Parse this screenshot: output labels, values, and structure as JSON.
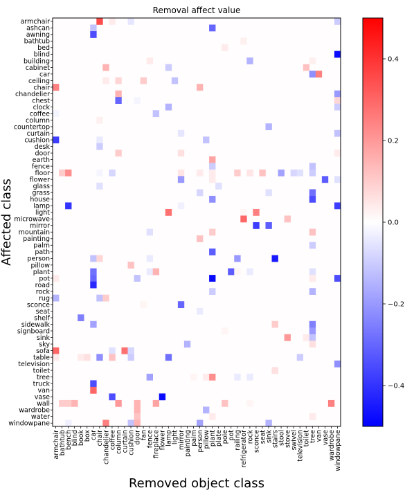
{
  "chart_data": {
    "type": "heatmap",
    "title": "Removal affect value",
    "xlabel": "Removed object class",
    "ylabel": "Affected class",
    "x_categories": [
      "armchair",
      "bathtub",
      "bench",
      "blind",
      "book",
      "box",
      "car",
      "chair",
      "chandelier",
      "coffee",
      "column",
      "curtain",
      "cushion",
      "door",
      "fan",
      "fence",
      "fireplace",
      "flower",
      "lamp",
      "light",
      "mirror",
      "painting",
      "palm",
      "person",
      "pillow",
      "plant",
      "plate",
      "pole",
      "pot",
      "railing",
      "refrigerator",
      "rock",
      "sconce",
      "seat",
      "sink",
      "stairs",
      "stool",
      "stove",
      "swivel",
      "television",
      "toilet",
      "tree",
      "van",
      "vase",
      "wardrobe",
      "windowpane"
    ],
    "y_categories": [
      "armchair",
      "ashcan",
      "awning",
      "bathtub",
      "bed",
      "blind",
      "building",
      "cabinet",
      "car",
      "ceiling",
      "chair",
      "chandelier",
      "chest",
      "clock",
      "coffee",
      "column",
      "countertop",
      "curtain",
      "cushion",
      "desk",
      "door",
      "earth",
      "fence",
      "floor",
      "flower",
      "glass",
      "grass",
      "house",
      "lamp",
      "light",
      "microwave",
      "mirror",
      "mountain",
      "painting",
      "palm",
      "path",
      "person",
      "pillow",
      "plant",
      "pot",
      "road",
      "rock",
      "rug",
      "sconce",
      "seat",
      "shelf",
      "sidewalk",
      "signboard",
      "sink",
      "sky",
      "sofa",
      "table",
      "television",
      "toilet",
      "tree",
      "truck",
      "van",
      "vase",
      "wall",
      "wardrobe",
      "water",
      "windowpane"
    ],
    "cells": [
      {
        "y": "armchair",
        "x": "chair",
        "v": 0.35
      },
      {
        "y": "armchair",
        "x": "coffee",
        "v": 0.04
      },
      {
        "y": "armchair",
        "x": "cushion",
        "v": -0.05
      },
      {
        "y": "armchair",
        "x": "windowpane",
        "v": -0.1
      },
      {
        "y": "ashcan",
        "x": "car",
        "v": -0.12
      },
      {
        "y": "ashcan",
        "x": "plant",
        "v": -0.3
      },
      {
        "y": "awning",
        "x": "car",
        "v": -0.35
      },
      {
        "y": "bed",
        "x": "pole",
        "v": 0.04
      },
      {
        "y": "bathtub",
        "x": "refrigerator",
        "v": 0.03
      },
      {
        "y": "blind",
        "x": "windowpane",
        "v": -0.48
      },
      {
        "y": "building",
        "x": "fence",
        "v": 0.04
      },
      {
        "y": "building",
        "x": "rock",
        "v": -0.15
      },
      {
        "y": "building",
        "x": "tree",
        "v": 0.03
      },
      {
        "y": "cabinet",
        "x": "chandelier",
        "v": 0.15
      },
      {
        "y": "cabinet",
        "x": "lamp",
        "v": -0.1
      },
      {
        "y": "cabinet",
        "x": "toilet",
        "v": 0.12
      },
      {
        "y": "car",
        "x": "tree",
        "v": -0.22
      },
      {
        "y": "car",
        "x": "van",
        "v": 0.25
      },
      {
        "y": "ceiling",
        "x": "chandelier",
        "v": 0.04
      },
      {
        "y": "ceiling",
        "x": "column",
        "v": 0.08
      },
      {
        "y": "ceiling",
        "x": "fan",
        "v": 0.1
      },
      {
        "y": "ceiling",
        "x": "light",
        "v": -0.12
      },
      {
        "y": "chair",
        "x": "armchair",
        "v": 0.25
      },
      {
        "y": "chair",
        "x": "person",
        "v": 0.15
      },
      {
        "y": "chandelier",
        "x": "column",
        "v": 0.15
      },
      {
        "y": "chandelier",
        "x": "windowpane",
        "v": -0.2
      },
      {
        "y": "chest",
        "x": "column",
        "v": -0.3
      },
      {
        "y": "chest",
        "x": "door",
        "v": -0.02
      },
      {
        "y": "chest",
        "x": "windowpane",
        "v": 0.08
      },
      {
        "y": "clock",
        "x": "lamp",
        "v": -0.15
      },
      {
        "y": "clock",
        "x": "windowpane",
        "v": -0.1
      },
      {
        "y": "coffee",
        "x": "armchair",
        "v": -0.02
      },
      {
        "y": "coffee",
        "x": "fireplace",
        "v": -0.12
      },
      {
        "y": "column",
        "x": "chair",
        "v": 0.03
      },
      {
        "y": "curtain",
        "x": "mirror",
        "v": -0.05
      },
      {
        "y": "curtain",
        "x": "windowpane",
        "v": -0.12
      },
      {
        "y": "countertop",
        "x": "sink",
        "v": -0.15
      },
      {
        "y": "cushion",
        "x": "armchair",
        "v": -0.38
      },
      {
        "y": "cushion",
        "x": "chair",
        "v": -0.04
      },
      {
        "y": "cushion",
        "x": "pillow",
        "v": -0.12
      },
      {
        "y": "desk",
        "x": "chair",
        "v": -0.1
      },
      {
        "y": "door",
        "x": "column",
        "v": 0.1
      },
      {
        "y": "door",
        "x": "mirror",
        "v": 0.06
      },
      {
        "y": "door",
        "x": "windowpane",
        "v": 0.04
      },
      {
        "y": "earth",
        "x": "plant",
        "v": 0.18
      },
      {
        "y": "fence",
        "x": "plant",
        "v": -0.1
      },
      {
        "y": "fence",
        "x": "tree",
        "v": -0.12
      },
      {
        "y": "floor",
        "x": "bathtub",
        "v": 0.1
      },
      {
        "y": "floor",
        "x": "bench",
        "v": 0.22
      },
      {
        "y": "floor",
        "x": "chair",
        "v": -0.02
      },
      {
        "y": "floor",
        "x": "coffee",
        "v": -0.08
      },
      {
        "y": "floor",
        "x": "mirror",
        "v": 0.05
      },
      {
        "y": "floor",
        "x": "plant",
        "v": 0.04
      },
      {
        "y": "floor",
        "x": "person",
        "v": 0.04
      },
      {
        "y": "floor",
        "x": "railing",
        "v": 0.1
      },
      {
        "y": "floor",
        "x": "rock",
        "v": 0.05
      },
      {
        "y": "floor",
        "x": "seat",
        "v": 0.12
      },
      {
        "y": "floor",
        "x": "stool",
        "v": -0.18
      },
      {
        "y": "floor",
        "x": "swivel",
        "v": -0.08
      },
      {
        "y": "floor",
        "x": "television",
        "v": -0.06
      },
      {
        "y": "floor",
        "x": "tree",
        "v": -0.1
      },
      {
        "y": "flower",
        "x": "mirror",
        "v": -0.2
      },
      {
        "y": "flower",
        "x": "plant",
        "v": 0.04
      },
      {
        "y": "flower",
        "x": "vase",
        "v": -0.32
      },
      {
        "y": "flower",
        "x": "windowpane",
        "v": -0.06
      },
      {
        "y": "glass",
        "x": "chair",
        "v": -0.06
      },
      {
        "y": "glass",
        "x": "plate",
        "v": -0.06
      },
      {
        "y": "grass",
        "x": "person",
        "v": -0.08
      },
      {
        "y": "grass",
        "x": "sink",
        "v": -0.06
      },
      {
        "y": "grass",
        "x": "tree",
        "v": -0.28
      },
      {
        "y": "house",
        "x": "plant",
        "v": -0.22
      },
      {
        "y": "house",
        "x": "tree",
        "v": -0.35
      },
      {
        "y": "lamp",
        "x": "bench",
        "v": -0.4
      },
      {
        "y": "lamp",
        "x": "mirror",
        "v": -0.03
      },
      {
        "y": "lamp",
        "x": "windowpane",
        "v": -0.38
      },
      {
        "y": "light",
        "x": "lamp",
        "v": 0.28
      },
      {
        "y": "light",
        "x": "refrigerator",
        "v": 0.02
      },
      {
        "y": "light",
        "x": "sconce",
        "v": 0.25
      },
      {
        "y": "microwave",
        "x": "refrigerator",
        "v": 0.3
      },
      {
        "y": "microwave",
        "x": "stove",
        "v": 0.12
      },
      {
        "y": "mirror",
        "x": "sconce",
        "v": -0.38
      },
      {
        "y": "mirror",
        "x": "sink",
        "v": -0.32
      },
      {
        "y": "mountain",
        "x": "fence",
        "v": -0.06
      },
      {
        "y": "mountain",
        "x": "plant",
        "v": 0.1
      },
      {
        "y": "mountain",
        "x": "tree",
        "v": 0.12
      },
      {
        "y": "painting",
        "x": "person",
        "v": 0.12
      },
      {
        "y": "palm",
        "x": "tree",
        "v": -0.1
      },
      {
        "y": "path",
        "x": "plant",
        "v": -0.32
      },
      {
        "y": "person",
        "x": "car",
        "v": -0.12
      },
      {
        "y": "person",
        "x": "chair",
        "v": 0.08
      },
      {
        "y": "person",
        "x": "fence",
        "v": -0.04
      },
      {
        "y": "person",
        "x": "railing",
        "v": -0.2
      },
      {
        "y": "person",
        "x": "stairs",
        "v": -0.45
      },
      {
        "y": "pillow",
        "x": "cushion",
        "v": 0.12
      },
      {
        "y": "plant",
        "x": "car",
        "v": -0.28
      },
      {
        "y": "plant",
        "x": "fence",
        "v": -0.04
      },
      {
        "y": "plant",
        "x": "fireplace",
        "v": 0.15
      },
      {
        "y": "plant",
        "x": "pot",
        "v": -0.32
      },
      {
        "y": "plant",
        "x": "railing",
        "v": 0.02
      },
      {
        "y": "plant",
        "x": "rock",
        "v": -0.04
      },
      {
        "y": "plant",
        "x": "tree",
        "v": -0.06
      },
      {
        "y": "pot",
        "x": "armchair",
        "v": 0.04
      },
      {
        "y": "pot",
        "x": "car",
        "v": -0.3
      },
      {
        "y": "pot",
        "x": "door",
        "v": -0.12
      },
      {
        "y": "pot",
        "x": "plant",
        "v": -0.48
      },
      {
        "y": "pot",
        "x": "tree",
        "v": 0.04
      },
      {
        "y": "pot",
        "x": "windowpane",
        "v": -0.35
      },
      {
        "y": "road",
        "x": "car",
        "v": -0.42
      },
      {
        "y": "rock",
        "x": "plant",
        "v": -0.1
      },
      {
        "y": "rock",
        "x": "tree",
        "v": -0.15
      },
      {
        "y": "rug",
        "x": "armchair",
        "v": -0.15
      },
      {
        "y": "rug",
        "x": "chair",
        "v": -0.12
      },
      {
        "y": "rug",
        "x": "chandelier",
        "v": 0.1
      },
      {
        "y": "sconce",
        "x": "fan",
        "v": 0.02
      },
      {
        "y": "sconce",
        "x": "mirror",
        "v": -0.3
      },
      {
        "y": "seat",
        "x": "person",
        "v": -0.04
      },
      {
        "y": "shelf",
        "x": "book",
        "v": -0.25
      },
      {
        "y": "sidewalk",
        "x": "car",
        "v": -0.18
      },
      {
        "y": "sidewalk",
        "x": "stairs",
        "v": 0.1
      },
      {
        "y": "sidewalk",
        "x": "tree",
        "v": -0.25
      },
      {
        "y": "signboard",
        "x": "pole",
        "v": 0.02
      },
      {
        "y": "signboard",
        "x": "tree",
        "v": -0.2
      },
      {
        "y": "sink",
        "x": "stove",
        "v": 0.2
      },
      {
        "y": "sink",
        "x": "toilet",
        "v": 0.04
      },
      {
        "y": "sink",
        "x": "tree",
        "v": -0.12
      },
      {
        "y": "sky",
        "x": "painting",
        "v": -0.15
      },
      {
        "y": "sky",
        "x": "tree",
        "v": 0.06
      },
      {
        "y": "sofa",
        "x": "armchair",
        "v": 0.3
      },
      {
        "y": "sofa",
        "x": "coffee",
        "v": -0.06
      },
      {
        "y": "sofa",
        "x": "curtain",
        "v": 0.28
      },
      {
        "y": "sofa",
        "x": "cushion",
        "v": -0.08
      },
      {
        "y": "table",
        "x": "armchair",
        "v": 0.04
      },
      {
        "y": "table",
        "x": "book",
        "v": 0.04
      },
      {
        "y": "table",
        "x": "box",
        "v": 0.06
      },
      {
        "y": "table",
        "x": "chair",
        "v": -0.22
      },
      {
        "y": "table",
        "x": "coffee",
        "v": 0.12
      },
      {
        "y": "table",
        "x": "cushion",
        "v": -0.1
      },
      {
        "y": "table",
        "x": "lamp",
        "v": -0.28
      },
      {
        "y": "table",
        "x": "television",
        "v": -0.1
      },
      {
        "y": "television",
        "x": "windowpane",
        "v": -0.22
      },
      {
        "y": "toilet",
        "x": "stairs",
        "v": 0.06
      },
      {
        "y": "tree",
        "x": "fence",
        "v": -0.18
      },
      {
        "y": "tree",
        "x": "palm",
        "v": 0.02
      },
      {
        "y": "tree",
        "x": "pillow",
        "v": 0.04
      },
      {
        "y": "tree",
        "x": "plant",
        "v": 0.22
      },
      {
        "y": "tree",
        "x": "railing",
        "v": -0.04
      },
      {
        "y": "tree",
        "x": "rock",
        "v": -0.04
      },
      {
        "y": "truck",
        "x": "car",
        "v": -0.35
      },
      {
        "y": "van",
        "x": "car",
        "v": 0.3
      },
      {
        "y": "vase",
        "x": "coffee",
        "v": -0.35
      },
      {
        "y": "vase",
        "x": "flower",
        "v": -0.48
      },
      {
        "y": "wall",
        "x": "bathtub",
        "v": 0.1
      },
      {
        "y": "wall",
        "x": "bench",
        "v": 0.1
      },
      {
        "y": "wall",
        "x": "blind",
        "v": 0.15
      },
      {
        "y": "wall",
        "x": "column",
        "v": 0.2
      },
      {
        "y": "wall",
        "x": "door",
        "v": 0.15
      },
      {
        "y": "wall",
        "x": "fireplace",
        "v": 0.18
      },
      {
        "y": "wall",
        "x": "pole",
        "v": 0.12
      },
      {
        "y": "wall",
        "x": "rock",
        "v": 0.02
      },
      {
        "y": "wall",
        "x": "wardrobe",
        "v": 0.25
      },
      {
        "y": "wardrobe",
        "x": "door",
        "v": 0.15
      },
      {
        "y": "wardrobe",
        "x": "pillow",
        "v": -0.15
      },
      {
        "y": "water",
        "x": "door",
        "v": 0.12
      },
      {
        "y": "water",
        "x": "plant",
        "v": 0.04
      },
      {
        "y": "water",
        "x": "tree",
        "v": 0.04
      },
      {
        "y": "windowpane",
        "x": "bench",
        "v": -0.03
      },
      {
        "y": "windowpane",
        "x": "chandelier",
        "v": 0.25
      },
      {
        "y": "windowpane",
        "x": "cushion",
        "v": -0.12
      },
      {
        "y": "windowpane",
        "x": "door",
        "v": 0.15
      },
      {
        "y": "windowpane",
        "x": "person",
        "v": -0.18
      },
      {
        "y": "windowpane",
        "x": "sink",
        "v": -0.15
      }
    ],
    "colorbar": {
      "colormap": "bwr",
      "range": [
        -0.5,
        0.5
      ],
      "ticks": [
        0.4,
        0.2,
        0.0,
        -0.2,
        -0.4
      ],
      "tick_labels": [
        "0.4",
        "0.2",
        "0.0",
        "−0.2",
        "−0.4"
      ]
    },
    "grid": false
  }
}
